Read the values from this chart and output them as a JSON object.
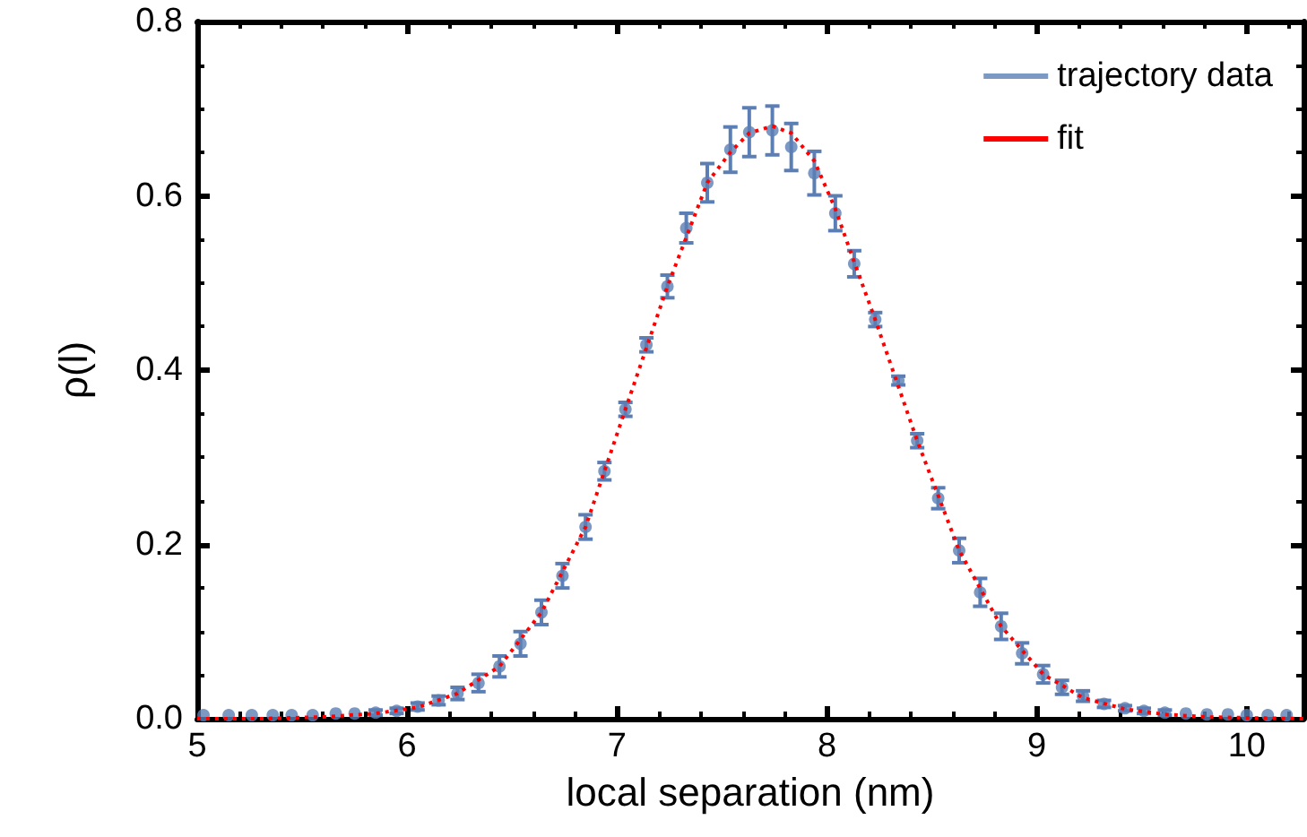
{
  "chart_data": {
    "type": "scatter",
    "xlabel": "local separation (nm)",
    "ylabel": "ρ(l)",
    "xlim": [
      5,
      10.27
    ],
    "xticks": [
      5,
      6,
      7,
      8,
      9,
      10
    ],
    "ylim": [
      0,
      0.8
    ],
    "yticks": [
      {
        "value": 0,
        "label": "0.0"
      },
      0.2,
      0.4,
      0.6,
      0.8
    ],
    "grid": false,
    "legend": "top right",
    "marker": "circle",
    "series": [
      {
        "name": "trajectory data",
        "color": "#5b7fb5",
        "x": [
          5.03,
          5.15,
          5.26,
          5.36,
          5.45,
          5.55,
          5.66,
          5.75,
          5.85,
          5.95,
          6.05,
          6.15,
          6.24,
          6.34,
          6.44,
          6.54,
          6.64,
          6.74,
          6.85,
          6.94,
          7.04,
          7.14,
          7.24,
          7.33,
          7.43,
          7.54,
          7.63,
          7.74,
          7.83,
          7.94,
          8.04,
          8.13,
          8.23,
          8.34,
          8.43,
          8.53,
          8.63,
          8.73,
          8.83,
          8.93,
          9.03,
          9.12,
          9.22,
          9.32,
          9.42,
          9.51,
          9.61,
          9.71,
          9.81,
          9.91,
          10.0,
          10.1,
          10.19
        ],
        "values": [
          0.004,
          0.004,
          0.004,
          0.004,
          0.004,
          0.004,
          0.006,
          0.006,
          0.007,
          0.009,
          0.014,
          0.021,
          0.029,
          0.041,
          0.06,
          0.086,
          0.122,
          0.164,
          0.22,
          0.284,
          0.355,
          0.429,
          0.496,
          0.563,
          0.615,
          0.653,
          0.673,
          0.675,
          0.656,
          0.626,
          0.58,
          0.522,
          0.458,
          0.388,
          0.319,
          0.253,
          0.193,
          0.145,
          0.106,
          0.075,
          0.051,
          0.036,
          0.026,
          0.017,
          0.012,
          0.009,
          0.007,
          0.006,
          0.005,
          0.005,
          0.004,
          0.004,
          0.004
        ],
        "errors": [
          null,
          null,
          null,
          null,
          null,
          null,
          null,
          null,
          0.003,
          0.003,
          0.004,
          0.005,
          0.007,
          0.01,
          0.012,
          0.014,
          0.014,
          0.014,
          0.014,
          0.01,
          0.008,
          0.008,
          0.013,
          0.017,
          0.022,
          0.026,
          0.028,
          0.028,
          0.027,
          0.025,
          0.02,
          0.015,
          0.008,
          0.005,
          0.008,
          0.012,
          0.014,
          0.016,
          0.015,
          0.012,
          0.01,
          0.008,
          0.006,
          0.004,
          0.003,
          0.003,
          0.003,
          null,
          null,
          null,
          null,
          null,
          null
        ]
      },
      {
        "name": "fit",
        "type": "line",
        "color": "#ff0000",
        "line_style": "dotted",
        "marker": "none",
        "x": [
          5.0,
          5.3,
          5.6,
          5.85,
          6.05,
          6.24,
          6.44,
          6.64,
          6.85,
          7.04,
          7.24,
          7.43,
          7.54,
          7.63,
          7.74,
          7.83,
          7.94,
          8.04,
          8.13,
          8.23,
          8.43,
          8.63,
          8.83,
          9.03,
          9.22,
          9.42,
          9.61,
          9.81,
          10.0,
          10.27
        ],
        "values": [
          0.0,
          0.0,
          0.002,
          0.006,
          0.013,
          0.029,
          0.06,
          0.122,
          0.22,
          0.355,
          0.496,
          0.615,
          0.65,
          0.672,
          0.68,
          0.672,
          0.64,
          0.585,
          0.524,
          0.458,
          0.319,
          0.193,
          0.106,
          0.051,
          0.024,
          0.011,
          0.005,
          0.002,
          0.001,
          0.0
        ]
      }
    ]
  }
}
